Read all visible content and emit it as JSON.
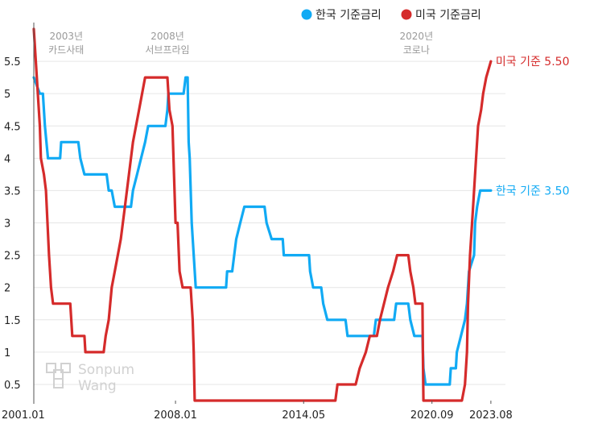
{
  "chart_data": {
    "type": "line",
    "y_ticks": [
      0.5,
      1,
      1.5,
      2,
      2.5,
      3,
      3.5,
      4,
      4.5,
      5,
      5.5
    ],
    "y_tick_labels": [
      "0.5",
      "1",
      "1.5",
      "2",
      "2.5",
      "3",
      "3.5",
      "4",
      "4.5",
      "5",
      "5.5"
    ],
    "ylim": [
      0.25,
      6.0
    ],
    "xlim": [
      2001.0,
      2024.3
    ],
    "x_ticks": [
      {
        "label": "2001.01",
        "value": 2001.0
      },
      {
        "label": "2008.01",
        "value": 2008.0
      },
      {
        "label": "2014.05",
        "value": 2014.33
      },
      {
        "label": "2020.09",
        "value": 2020.67
      },
      {
        "label": "2023.08",
        "value": 2023.58
      }
    ],
    "grid": true,
    "legend_position": "top-right",
    "events": [
      {
        "year": "2003년",
        "name": "카드사태",
        "x": 2002.6
      },
      {
        "year": "2008년",
        "name": "서브프라임",
        "x": 2007.6
      },
      {
        "year": "2020년",
        "name": "코로나",
        "x": 2019.9
      }
    ],
    "series": [
      {
        "name": "한국 기준금리",
        "color": "#11aaf4",
        "end_label": "한국 기준 3.50",
        "points": [
          [
            2001.0,
            5.25
          ],
          [
            2001.3,
            5.0
          ],
          [
            2001.45,
            5.0
          ],
          [
            2001.55,
            4.5
          ],
          [
            2001.7,
            4.0
          ],
          [
            2002.0,
            4.0
          ],
          [
            2002.3,
            4.0
          ],
          [
            2002.35,
            4.25
          ],
          [
            2003.2,
            4.25
          ],
          [
            2003.3,
            4.0
          ],
          [
            2003.5,
            3.75
          ],
          [
            2004.6,
            3.75
          ],
          [
            2004.7,
            3.5
          ],
          [
            2004.85,
            3.5
          ],
          [
            2005.0,
            3.25
          ],
          [
            2005.8,
            3.25
          ],
          [
            2005.9,
            3.5
          ],
          [
            2006.1,
            3.75
          ],
          [
            2006.3,
            4.0
          ],
          [
            2006.5,
            4.25
          ],
          [
            2006.65,
            4.5
          ],
          [
            2007.5,
            4.5
          ],
          [
            2007.6,
            4.75
          ],
          [
            2007.65,
            5.0
          ],
          [
            2008.4,
            5.0
          ],
          [
            2008.5,
            5.25
          ],
          [
            2008.6,
            5.25
          ],
          [
            2008.65,
            4.25
          ],
          [
            2008.7,
            4.0
          ],
          [
            2008.8,
            3.0
          ],
          [
            2008.9,
            2.5
          ],
          [
            2009.0,
            2.0
          ],
          [
            2010.5,
            2.0
          ],
          [
            2010.55,
            2.25
          ],
          [
            2010.8,
            2.25
          ],
          [
            2010.9,
            2.5
          ],
          [
            2011.0,
            2.75
          ],
          [
            2011.2,
            3.0
          ],
          [
            2011.4,
            3.25
          ],
          [
            2012.4,
            3.25
          ],
          [
            2012.5,
            3.0
          ],
          [
            2012.75,
            2.75
          ],
          [
            2013.3,
            2.75
          ],
          [
            2013.35,
            2.5
          ],
          [
            2014.6,
            2.5
          ],
          [
            2014.65,
            2.25
          ],
          [
            2014.8,
            2.0
          ],
          [
            2015.2,
            2.0
          ],
          [
            2015.3,
            1.75
          ],
          [
            2015.5,
            1.5
          ],
          [
            2016.4,
            1.5
          ],
          [
            2016.5,
            1.25
          ],
          [
            2017.8,
            1.25
          ],
          [
            2017.9,
            1.5
          ],
          [
            2018.8,
            1.5
          ],
          [
            2018.9,
            1.75
          ],
          [
            2019.5,
            1.75
          ],
          [
            2019.6,
            1.5
          ],
          [
            2019.8,
            1.25
          ],
          [
            2020.2,
            1.25
          ],
          [
            2020.25,
            0.75
          ],
          [
            2020.35,
            0.5
          ],
          [
            2021.55,
            0.5
          ],
          [
            2021.6,
            0.75
          ],
          [
            2021.85,
            0.75
          ],
          [
            2021.9,
            1.0
          ],
          [
            2022.1,
            1.25
          ],
          [
            2022.3,
            1.5
          ],
          [
            2022.4,
            1.75
          ],
          [
            2022.5,
            2.25
          ],
          [
            2022.75,
            2.5
          ],
          [
            2022.8,
            3.0
          ],
          [
            2022.9,
            3.25
          ],
          [
            2023.05,
            3.5
          ],
          [
            2023.58,
            3.5
          ]
        ]
      },
      {
        "name": "미국 기준금리",
        "color": "#d52b2b",
        "end_label": "미국 기준 5.50",
        "points": [
          [
            2001.0,
            6.0
          ],
          [
            2001.1,
            5.5
          ],
          [
            2001.2,
            5.0
          ],
          [
            2001.3,
            4.5
          ],
          [
            2001.35,
            4.0
          ],
          [
            2001.5,
            3.75
          ],
          [
            2001.6,
            3.5
          ],
          [
            2001.75,
            2.5
          ],
          [
            2001.85,
            2.0
          ],
          [
            2001.95,
            1.75
          ],
          [
            2002.8,
            1.75
          ],
          [
            2002.9,
            1.25
          ],
          [
            2003.5,
            1.25
          ],
          [
            2003.55,
            1.0
          ],
          [
            2004.45,
            1.0
          ],
          [
            2004.55,
            1.25
          ],
          [
            2004.7,
            1.5
          ],
          [
            2004.85,
            2.0
          ],
          [
            2005.0,
            2.25
          ],
          [
            2005.3,
            2.75
          ],
          [
            2005.5,
            3.25
          ],
          [
            2005.7,
            3.75
          ],
          [
            2005.9,
            4.25
          ],
          [
            2006.2,
            4.75
          ],
          [
            2006.5,
            5.25
          ],
          [
            2007.6,
            5.25
          ],
          [
            2007.7,
            4.75
          ],
          [
            2007.85,
            4.5
          ],
          [
            2008.0,
            3.0
          ],
          [
            2008.1,
            3.0
          ],
          [
            2008.2,
            2.25
          ],
          [
            2008.35,
            2.0
          ],
          [
            2008.75,
            2.0
          ],
          [
            2008.85,
            1.5
          ],
          [
            2008.9,
            1.0
          ],
          [
            2008.95,
            0.25
          ],
          [
            2015.9,
            0.25
          ],
          [
            2016.0,
            0.5
          ],
          [
            2016.9,
            0.5
          ],
          [
            2017.1,
            0.75
          ],
          [
            2017.4,
            1.0
          ],
          [
            2017.6,
            1.25
          ],
          [
            2017.95,
            1.25
          ],
          [
            2018.1,
            1.5
          ],
          [
            2018.3,
            1.75
          ],
          [
            2018.5,
            2.0
          ],
          [
            2018.75,
            2.25
          ],
          [
            2018.95,
            2.5
          ],
          [
            2019.5,
            2.5
          ],
          [
            2019.6,
            2.25
          ],
          [
            2019.75,
            2.0
          ],
          [
            2019.85,
            1.75
          ],
          [
            2020.2,
            1.75
          ],
          [
            2020.22,
            1.0
          ],
          [
            2020.25,
            0.25
          ],
          [
            2022.15,
            0.25
          ],
          [
            2022.3,
            0.5
          ],
          [
            2022.4,
            1.0
          ],
          [
            2022.45,
            1.75
          ],
          [
            2022.55,
            2.5
          ],
          [
            2022.7,
            3.25
          ],
          [
            2022.85,
            4.0
          ],
          [
            2022.95,
            4.5
          ],
          [
            2023.1,
            4.75
          ],
          [
            2023.2,
            5.0
          ],
          [
            2023.35,
            5.25
          ],
          [
            2023.58,
            5.5
          ]
        ]
      }
    ]
  },
  "watermark": {
    "line1": "Sonpum",
    "line2": "Wang"
  }
}
